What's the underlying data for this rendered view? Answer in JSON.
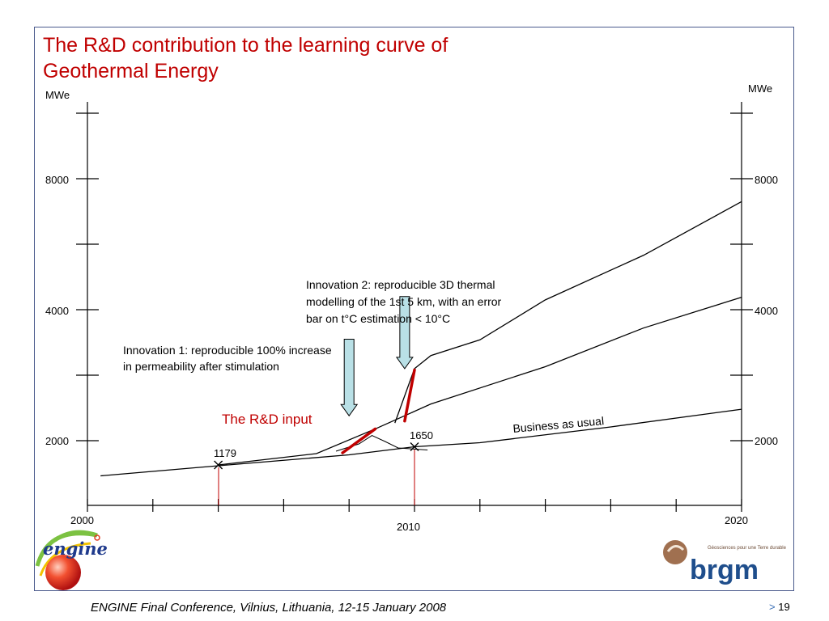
{
  "title_line1": "The R&D contribution to the learning curve of",
  "title_line2": "Geothermal Energy",
  "footer": "ENGINE Final Conference, Vilnius, Lithuania, 12-15 January 2008",
  "page_prefix": ">",
  "page_number": "19",
  "logos": {
    "left": "engine",
    "right_tagline": "Géosciences pour une Terre durable",
    "right_name": "brgm"
  },
  "colors": {
    "title": "#c00000",
    "rd_segments": "#c00000",
    "arrows": "#b9e0e6",
    "frame": "#4a5a8c"
  },
  "chart_data": {
    "type": "line",
    "title": "The R&D contribution to the learning curve of Geothermal Energy",
    "ylabel_left": "MWe",
    "ylabel_right": "MWe",
    "xlim": [
      2000,
      2020
    ],
    "ylim": [
      0,
      10000
    ],
    "x_tick_labels": [
      "2000",
      "2010",
      "2020"
    ],
    "y_tick_labels": [
      "2000",
      "4000",
      "8000"
    ],
    "series": [
      {
        "name": "Business as usual",
        "points": [
          [
            2000.4,
            1130
          ],
          [
            2004,
            1380
          ],
          [
            2008,
            1650
          ],
          [
            2010,
            1850
          ],
          [
            2012,
            1950
          ],
          [
            2016,
            2210
          ],
          [
            2020,
            2480
          ]
        ]
      },
      {
        "name": "",
        "points": [
          [
            2004,
            1400
          ],
          [
            2007,
            1680
          ],
          [
            2008.8,
            2180
          ],
          [
            2010.5,
            2560
          ],
          [
            2014,
            3130
          ],
          [
            2017,
            3720
          ],
          [
            2020,
            4380
          ]
        ]
      },
      {
        "name": "",
        "points": [
          [
            2009.4,
            2270
          ],
          [
            2010,
            3100
          ],
          [
            2010.5,
            3300
          ],
          [
            2012,
            3540
          ],
          [
            2014,
            4300
          ],
          [
            2017,
            5660
          ],
          [
            2020,
            7300
          ]
        ]
      }
    ],
    "bump": [
      [
        2007.6,
        1740
      ],
      [
        2008.3,
        1920
      ],
      [
        2008.7,
        2080
      ],
      [
        2009.1,
        1980
      ],
      [
        2009.5,
        1820
      ],
      [
        2010.4,
        1770
      ]
    ],
    "rd_segments": [
      [
        [
          2007.8,
          1700
        ],
        [
          2008.8,
          2180
        ]
      ],
      [
        [
          2009.7,
          2300
        ],
        [
          2010,
          3080
        ]
      ]
    ],
    "markers": [
      {
        "x": 2004,
        "y": 1400,
        "label": "1179"
      },
      {
        "x": 2010,
        "y": 1850,
        "label": "1650"
      }
    ],
    "annotations": {
      "rd_input": "The R&D input",
      "business": "Business as usual",
      "innovation1": [
        "Innovation 1: reproducible 100% increase",
        "in permeability after stimulation"
      ],
      "innovation2": [
        "Innovation 2: reproducible 3D thermal",
        "modelling of the 1st 5 km, with an error",
        "bar on t°C estimation < 10°C"
      ]
    },
    "arrows": [
      {
        "x": 2008,
        "y_top": 3550,
        "y_bottom": 2380
      },
      {
        "x": 2009.7,
        "y_top": 4400,
        "y_bottom": 3100
      }
    ],
    "grid": false,
    "legend": "none"
  }
}
